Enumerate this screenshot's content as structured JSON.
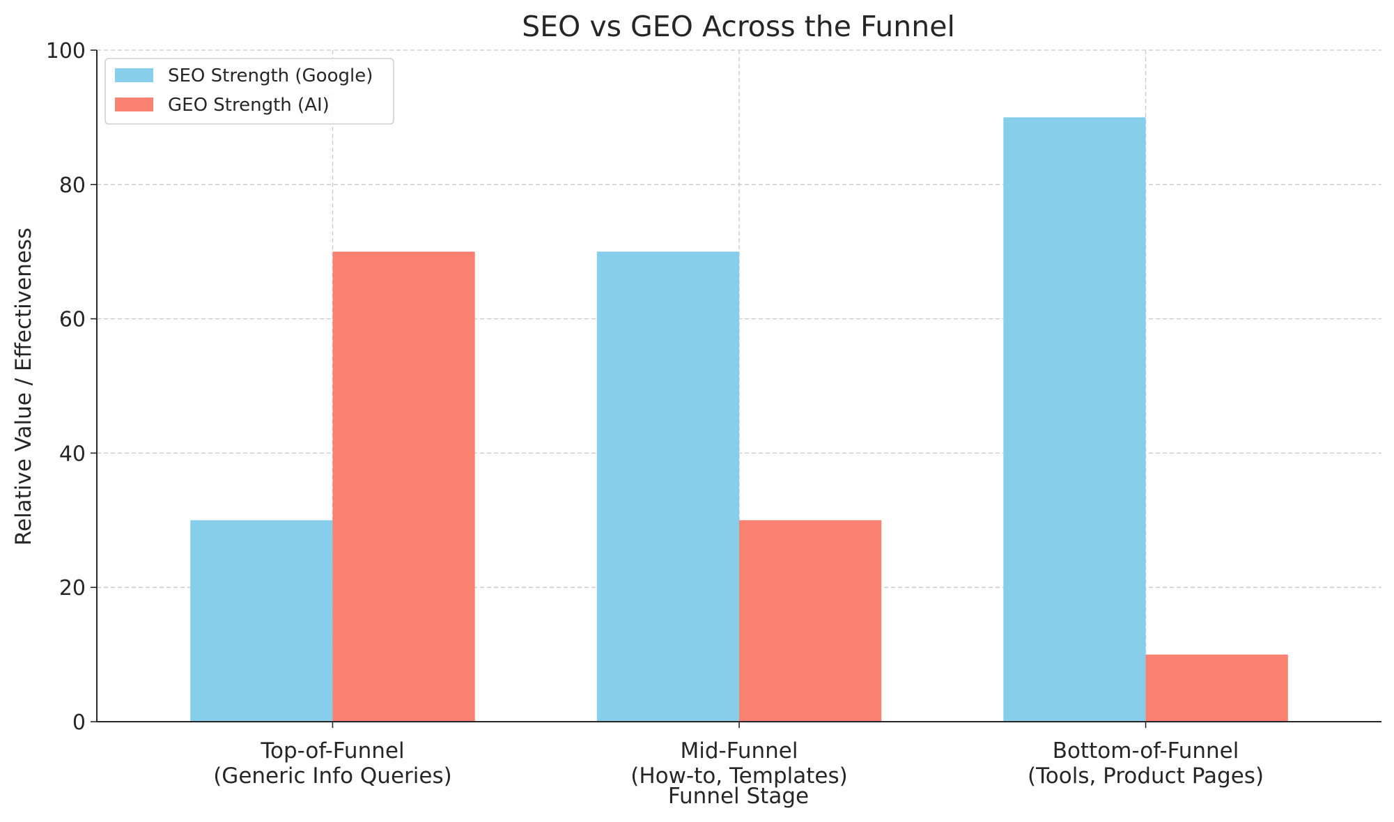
{
  "chart_data": {
    "type": "bar",
    "title": "SEO vs GEO Across the Funnel",
    "xlabel": "Funnel Stage",
    "ylabel": "Relative Value / Effectiveness",
    "categories": [
      [
        "Top-of-Funnel",
        "(Generic Info Queries)"
      ],
      [
        "Mid-Funnel",
        "(How-to, Templates)"
      ],
      [
        "Bottom-of-Funnel",
        "(Tools, Product Pages)"
      ]
    ],
    "series": [
      {
        "name": "SEO Strength (Google)",
        "color": "#87CEEB",
        "values": [
          30,
          70,
          90
        ]
      },
      {
        "name": "GEO Strength (AI)",
        "color": "#FA8072",
        "values": [
          70,
          30,
          10
        ]
      }
    ],
    "ylim": [
      0,
      100
    ],
    "yticks": [
      0,
      20,
      40,
      60,
      80,
      100
    ],
    "grid": true,
    "legend": "top-left"
  }
}
